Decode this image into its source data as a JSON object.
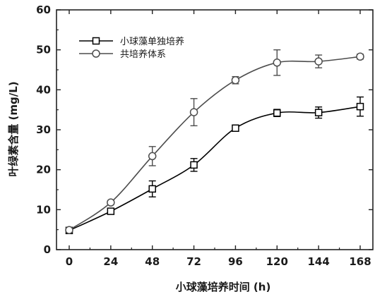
{
  "chart_data": {
    "type": "line",
    "xlabel": "小球藻培养时间 (h)",
    "ylabel": "叶绿素含量 (mg/L)",
    "xlim": [
      0,
      168
    ],
    "ylim": [
      0,
      60
    ],
    "xticks": [
      0,
      24,
      48,
      72,
      96,
      120,
      144,
      168
    ],
    "yticks": [
      0,
      10,
      20,
      30,
      40,
      50,
      60
    ],
    "grid": false,
    "legend_position": "top-left",
    "series": [
      {
        "name": "小球藻单独培养",
        "marker": "square",
        "color": "#000000",
        "x": [
          0,
          24,
          48,
          72,
          96,
          120,
          144,
          168
        ],
        "y": [
          4.8,
          9.6,
          15.2,
          21.2,
          30.4,
          34.2,
          34.3,
          35.8
        ],
        "error": [
          0.4,
          0.6,
          2.0,
          1.6,
          0.6,
          0.9,
          1.4,
          2.4
        ]
      },
      {
        "name": "共培养体系",
        "marker": "circle",
        "color": "#4d4d4d",
        "x": [
          0,
          24,
          48,
          72,
          96,
          120,
          144,
          168
        ],
        "y": [
          4.9,
          11.8,
          23.4,
          34.4,
          42.4,
          46.8,
          47.1,
          48.3
        ],
        "error": [
          0.4,
          0.5,
          2.4,
          3.4,
          0.9,
          3.2,
          1.6,
          0.6
        ]
      }
    ]
  }
}
